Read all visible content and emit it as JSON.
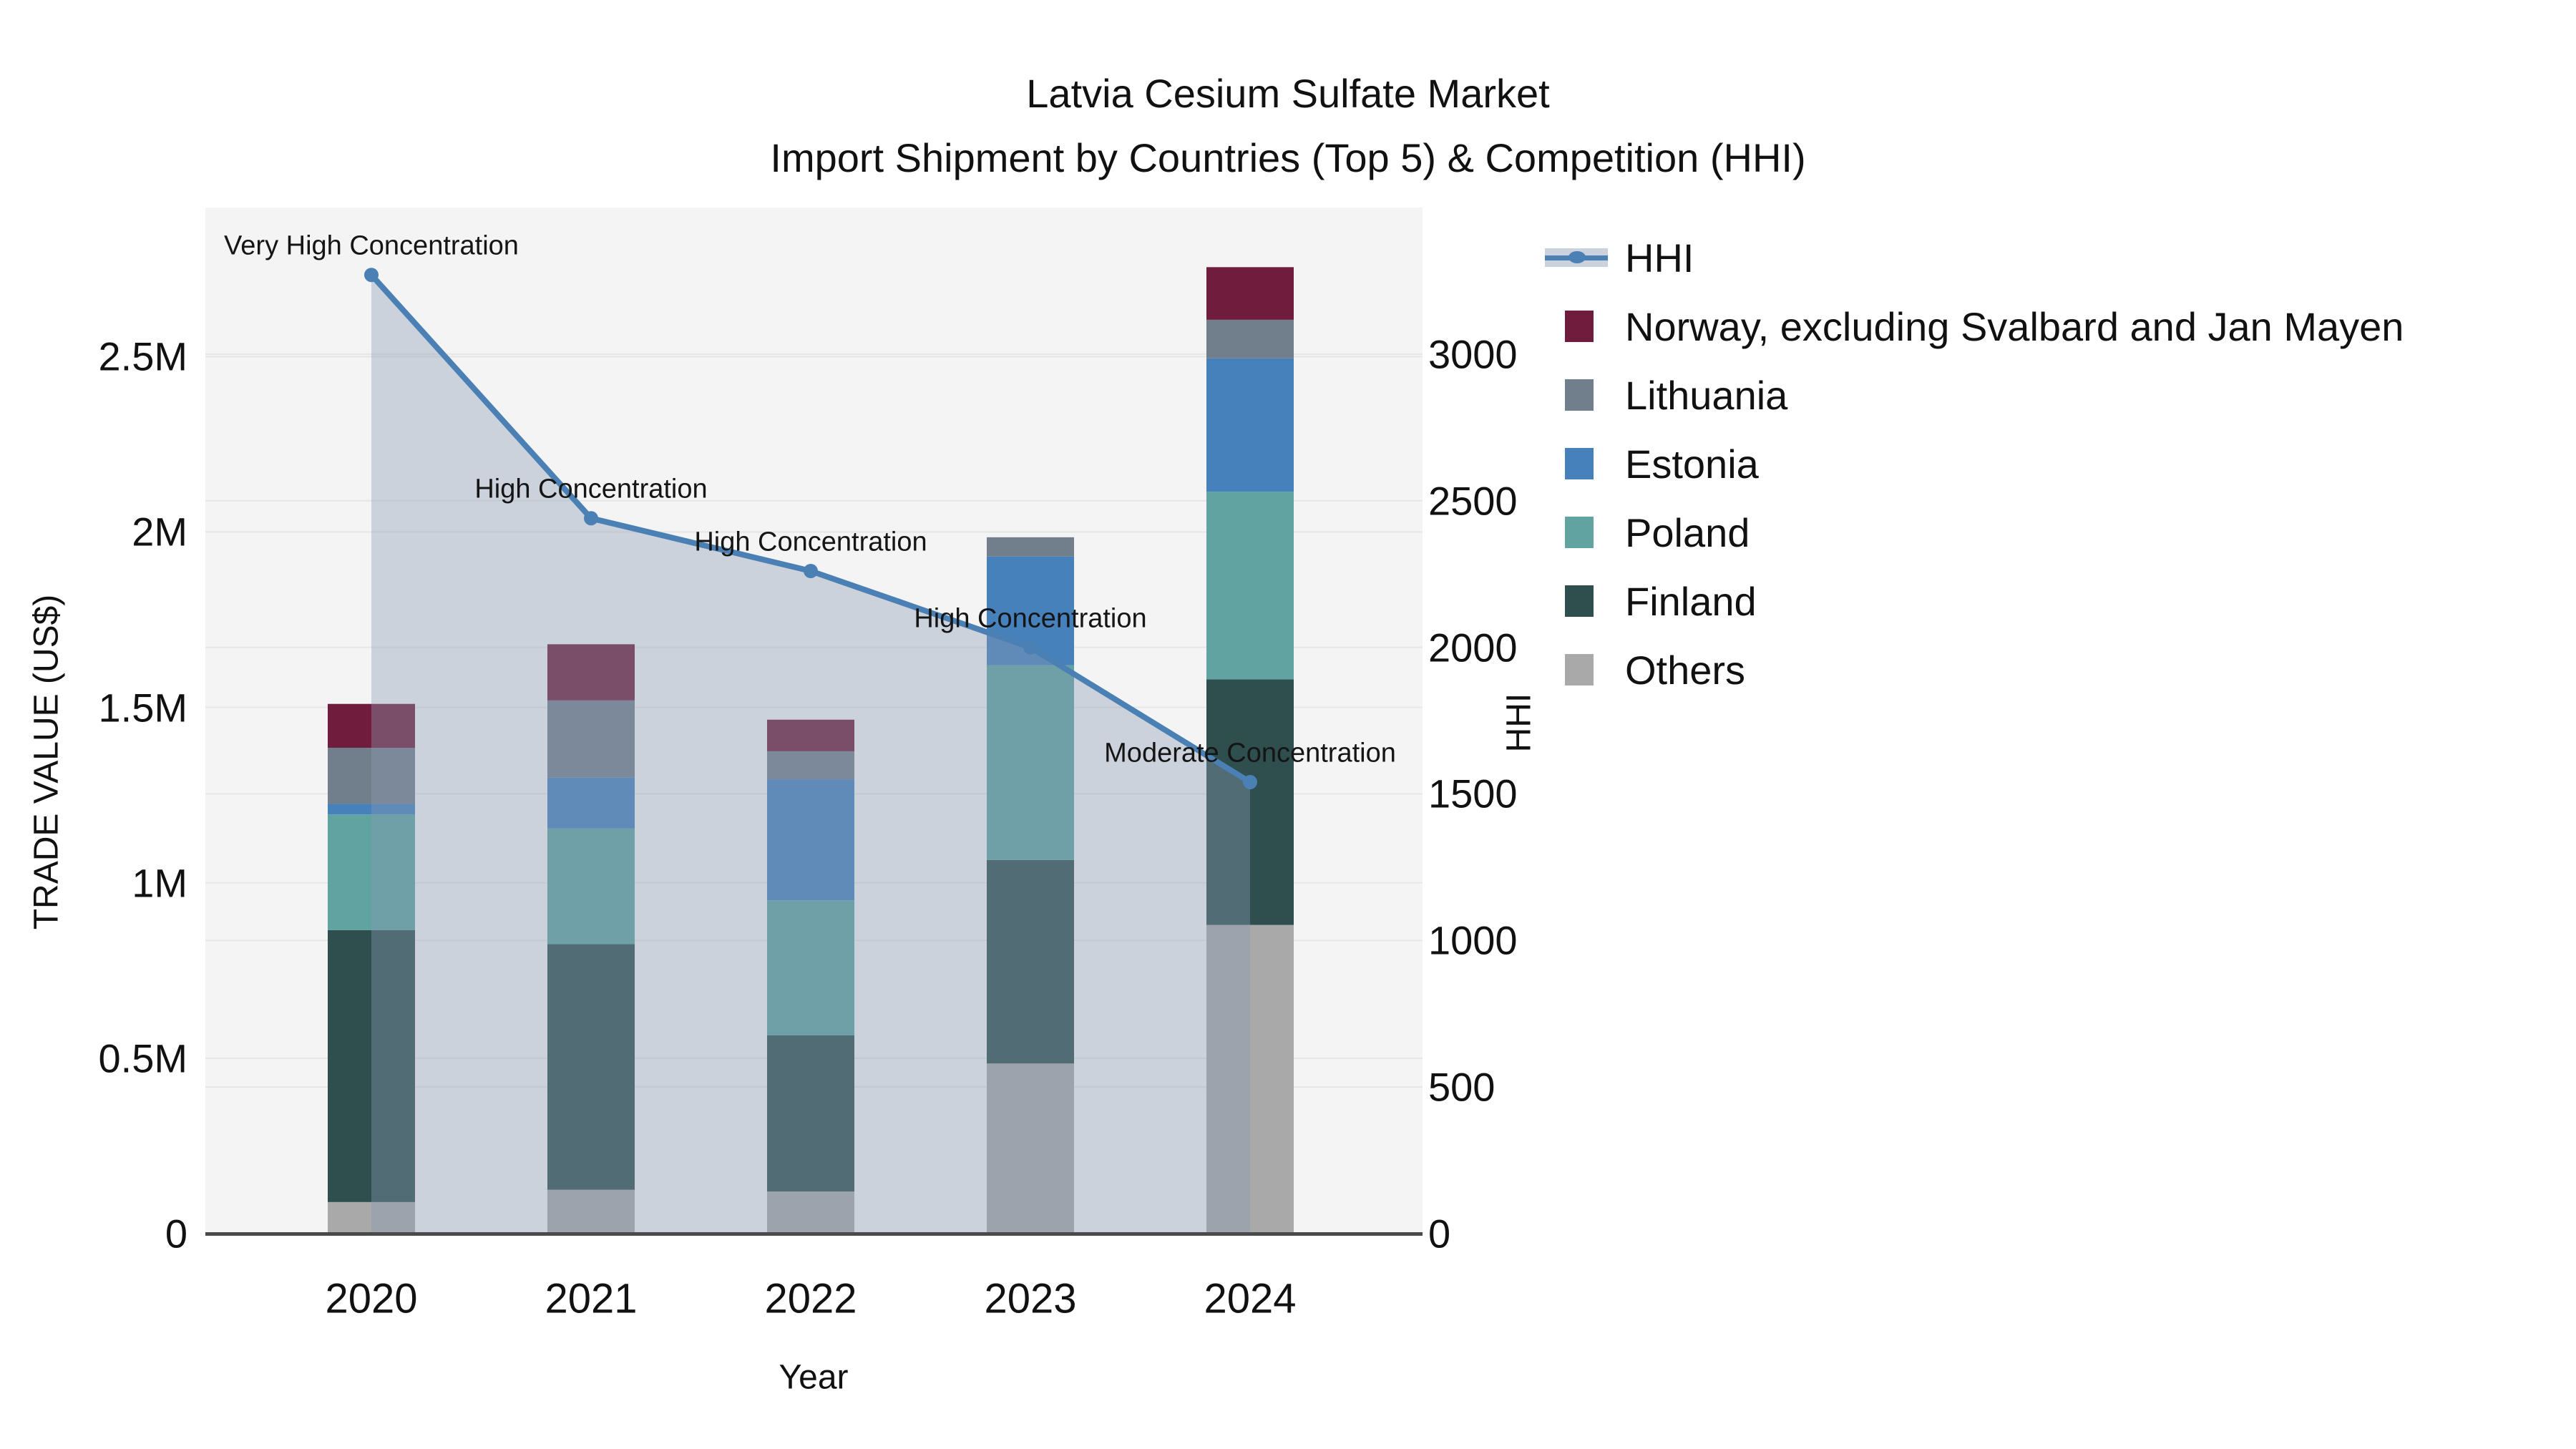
{
  "title": {
    "line1": "Latvia Cesium Sulfate Market",
    "line2": "Import Shipment by Countries (Top 5) & Competition (HHI)"
  },
  "axes": {
    "x": {
      "title": "Year",
      "categories": [
        "2020",
        "2021",
        "2022",
        "2023",
        "2024"
      ]
    },
    "y_left": {
      "title": "TRADE VALUE (US$)",
      "tick_labels": [
        "0",
        "0.5M",
        "1M",
        "1.5M",
        "2M",
        "2.5M"
      ],
      "tick_values": [
        0,
        500000,
        1000000,
        1500000,
        2000000,
        2500000
      ],
      "range": [
        0,
        2925000
      ]
    },
    "y_right": {
      "title": "HHI",
      "tick_labels": [
        "0",
        "500",
        "1000",
        "1500",
        "2000",
        "2500",
        "3000"
      ],
      "tick_values": [
        0,
        500,
        1000,
        1500,
        2000,
        2500,
        3000
      ],
      "range": [
        0,
        3500
      ]
    }
  },
  "colors": {
    "plot_bg": "#f4f4f4",
    "gridline": "#e6e6e6",
    "axis_line": "#4a4a4a",
    "hhi_line": "#4a80b4",
    "hhi_fill": "rgba(140,155,180,0.38)",
    "norway": "#701d3d",
    "lithuania": "#717e8c",
    "estonia": "#4681bb",
    "poland": "#60a3a0",
    "finland": "#2e4f4e",
    "others": "#a9a9a9"
  },
  "legend": {
    "items": [
      {
        "label": "HHI",
        "type": "line",
        "color": "#4a80b4"
      },
      {
        "label": "Norway, excluding Svalbard and Jan Mayen",
        "type": "bar",
        "color": "#701d3d"
      },
      {
        "label": "Lithuania",
        "type": "bar",
        "color": "#717e8c"
      },
      {
        "label": "Estonia",
        "type": "bar",
        "color": "#4681bb"
      },
      {
        "label": "Poland",
        "type": "bar",
        "color": "#60a3a0"
      },
      {
        "label": "Finland",
        "type": "bar",
        "color": "#2e4f4e"
      },
      {
        "label": "Others",
        "type": "bar",
        "color": "#a9a9a9"
      }
    ]
  },
  "chart_data": {
    "type": "combo: stacked bar (left axis) + line with area fill (right axis)",
    "title": "Latvia Cesium Sulfate Market — Import Shipment by Countries (Top 5) & Competition (HHI)",
    "categories": [
      "2020",
      "2021",
      "2022",
      "2023",
      "2024"
    ],
    "xlabel": "Year",
    "ylabel_left": "TRADE VALUE (US$)",
    "ylabel_right": "HHI",
    "ylim_left": [
      0,
      2925000
    ],
    "ylim_right": [
      0,
      3500
    ],
    "grid": true,
    "legend_position": "top-right outside",
    "bar_stack_order_bottom_to_top": [
      "Others",
      "Finland",
      "Poland",
      "Estonia",
      "Lithuania",
      "Norway, excluding Svalbard and Jan Mayen"
    ],
    "bar_series": [
      {
        "name": "Others",
        "color": "#a9a9a9",
        "values": [
          90000,
          125000,
          120000,
          485000,
          880000
        ]
      },
      {
        "name": "Finland",
        "color": "#2e4f4e",
        "values": [
          775000,
          700000,
          445000,
          580000,
          700000
        ]
      },
      {
        "name": "Poland",
        "color": "#60a3a0",
        "values": [
          330000,
          330000,
          385000,
          555000,
          535000
        ]
      },
      {
        "name": "Estonia",
        "color": "#4681bb",
        "values": [
          30000,
          145000,
          345000,
          310000,
          380000
        ]
      },
      {
        "name": "Lithuania",
        "color": "#717e8c",
        "values": [
          160000,
          220000,
          80000,
          55000,
          110000
        ]
      },
      {
        "name": "Norway, excluding Svalbard and Jan Mayen",
        "color": "#701d3d",
        "values": [
          125000,
          160000,
          90000,
          0,
          150000
        ]
      }
    ],
    "bar_totals": [
      1510000,
      1680000,
      1465000,
      1985000,
      2755000
    ],
    "line_series": {
      "name": "HHI",
      "axis": "right",
      "color": "#4a80b4",
      "fill": "rgba(140,155,180,0.38)",
      "values": [
        3270,
        2440,
        2260,
        2000,
        1540
      ]
    },
    "annotations": [
      {
        "year": "2020",
        "text": "Very High Concentration"
      },
      {
        "year": "2021",
        "text": "High Concentration"
      },
      {
        "year": "2022",
        "text": "High Concentration"
      },
      {
        "year": "2023",
        "text": "High Concentration"
      },
      {
        "year": "2024",
        "text": "Moderate Concentration"
      }
    ]
  }
}
